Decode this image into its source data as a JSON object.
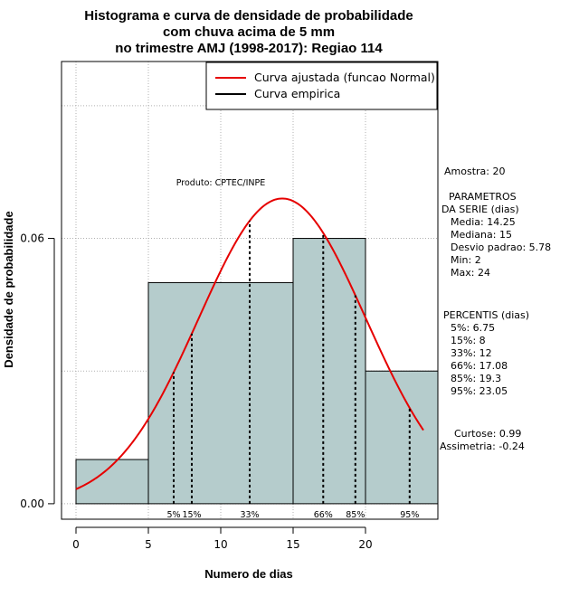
{
  "colors": {
    "bar_fill": "#b5cccc",
    "bar_stroke": "#000000",
    "fitted_curve": "#e60000",
    "grid": "#b0b0b0"
  },
  "chart_data": {
    "type": "bar",
    "title_lines": [
      "Histograma e curva de densidade de probabilidade",
      "com chuva acima de 5 mm",
      "no trimestre AMJ (1998-2017): Regiao 114"
    ],
    "xlabel": "Numero de dias",
    "ylabel": "Densidade de probabilidade",
    "xlim": [
      -1,
      25
    ],
    "ylim": [
      -0.0035,
      0.1
    ],
    "x_ticks": [
      0,
      5,
      10,
      15,
      20
    ],
    "y_ticks": [
      0.0,
      0.06
    ],
    "y_tick_labels": [
      "0.00",
      "0.06"
    ],
    "grid": true,
    "bins": [
      {
        "from": 0,
        "to": 5,
        "density": 0.01
      },
      {
        "from": 5,
        "to": 15,
        "density": 0.05
      },
      {
        "from": 15,
        "to": 20,
        "density": 0.06
      },
      {
        "from": 20,
        "to": 25,
        "density": 0.03
      }
    ],
    "normal_fit": {
      "mean": 14.25,
      "sd": 5.78,
      "x_range": [
        0,
        24
      ]
    },
    "percentile_lines": [
      {
        "label": "5%",
        "x": 6.75
      },
      {
        "label": "15%",
        "x": 8
      },
      {
        "label": "33%",
        "x": 12
      },
      {
        "label": "66%",
        "x": 17.08
      },
      {
        "label": "85%",
        "x": 19.3
      },
      {
        "label": "95%",
        "x": 23.05
      }
    ],
    "legend": {
      "position": "top-right",
      "entries": [
        {
          "label": "Curva ajustada (funcao Normal)",
          "color": "#e60000"
        },
        {
          "label": "Curva empirica",
          "color": "#000000"
        }
      ]
    },
    "annotation": "Produto: CPTEC/INPE"
  },
  "side_panel": {
    "sample": "Amostra: 20",
    "params_lines": [
      "PARAMETROS",
      "DA SERIE (dias)",
      "Media: 14.25",
      "Mediana: 15",
      "Desvio padrao: 5.78",
      "Min: 2",
      "Max: 24"
    ],
    "percentis_lines": [
      "PERCENTIS (dias)",
      "5%: 6.75",
      "15%: 8",
      "33%: 12",
      "66%: 17.08",
      "85%: 19.3",
      "95%: 23.05"
    ],
    "moments_lines": [
      "Curtose: 0.99",
      "Assimetria: -0.24"
    ]
  }
}
